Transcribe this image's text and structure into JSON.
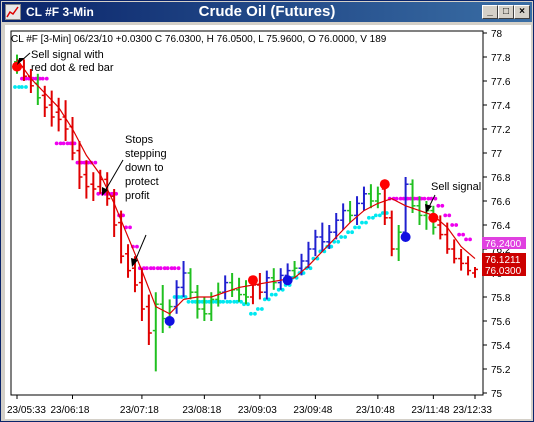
{
  "window": {
    "title_left": "CL #F 3-Min",
    "title_center": "Crude Oil (Futures)",
    "buttons": [
      "minimize-icon",
      "maximize-icon",
      "close-icon"
    ],
    "title_gradient": [
      "#0a246a",
      "#3a6ea5"
    ]
  },
  "info_line": "CL #F [3-Min] 06/23/10 +0.0300 C 76.0300, H 76.0500, L 75.9600, O 76.0000, V 189",
  "annotations": [
    {
      "lines": [
        "Sell signal with",
        "red dot & red bar"
      ]
    },
    {
      "lines": [
        "Stops",
        "stepping",
        "down to",
        "protect",
        "profit"
      ]
    },
    {
      "lines": [
        "Sell signal"
      ]
    }
  ],
  "price_boxes": [
    {
      "value": "76.2400",
      "color": "#e040e0"
    },
    {
      "value": "76.1211",
      "color": "#cc0000"
    },
    {
      "value": "76.0300",
      "color": "#cc0000"
    }
  ],
  "chart_data": {
    "type": "candlestick",
    "ylim": [
      75,
      78
    ],
    "y_ticks": [
      "78",
      "77.8",
      "77.6",
      "77.4",
      "77.2",
      "77",
      "76.8",
      "76.6",
      "76.4",
      "76.2",
      "76",
      "75.8",
      "75.6",
      "75.4",
      "75.2",
      "75"
    ],
    "x_ticks": [
      "23/05:33",
      "23/06:18",
      "23/07:18",
      "23/08:18",
      "23/09:03",
      "23/09:48",
      "23/10:48",
      "23/11:48",
      "23/12:33"
    ],
    "colors": {
      "down": "#e00000",
      "up": "#2020d0",
      "neutral": "#20c020",
      "ma": "#dd0000",
      "stop_short": "#ee00ee",
      "stop_long": "#00e8f0",
      "signal_red": "#ff0000",
      "signal_blue": "#1010e0"
    },
    "bars": [
      {
        "x": 1,
        "o": 77.76,
        "h": 77.82,
        "l": 77.66,
        "c": 77.7,
        "col": "neutral"
      },
      {
        "x": 2,
        "o": 77.72,
        "h": 77.78,
        "l": 77.6,
        "c": 77.64,
        "col": "down"
      },
      {
        "x": 3,
        "o": 77.64,
        "h": 77.7,
        "l": 77.5,
        "c": 77.56,
        "col": "down"
      },
      {
        "x": 4,
        "o": 77.58,
        "h": 77.66,
        "l": 77.4,
        "c": 77.46,
        "col": "neutral"
      },
      {
        "x": 5,
        "o": 77.48,
        "h": 77.56,
        "l": 77.3,
        "c": 77.38,
        "col": "down"
      },
      {
        "x": 6,
        "o": 77.4,
        "h": 77.52,
        "l": 77.22,
        "c": 77.3,
        "col": "down"
      },
      {
        "x": 7,
        "o": 77.34,
        "h": 77.46,
        "l": 77.18,
        "c": 77.28,
        "col": "down"
      },
      {
        "x": 8,
        "o": 77.3,
        "h": 77.44,
        "l": 77.1,
        "c": 77.2,
        "col": "down"
      },
      {
        "x": 9,
        "o": 77.22,
        "h": 77.3,
        "l": 76.94,
        "c": 77.0,
        "col": "down"
      },
      {
        "x": 10,
        "o": 77.02,
        "h": 77.1,
        "l": 76.7,
        "c": 76.8,
        "col": "down"
      },
      {
        "x": 11,
        "o": 76.82,
        "h": 76.94,
        "l": 76.62,
        "c": 76.72,
        "col": "down"
      },
      {
        "x": 12,
        "o": 76.74,
        "h": 76.84,
        "l": 76.6,
        "c": 76.7,
        "col": "down"
      },
      {
        "x": 13,
        "o": 76.72,
        "h": 76.86,
        "l": 76.66,
        "c": 76.78,
        "col": "down"
      },
      {
        "x": 14,
        "o": 76.78,
        "h": 76.84,
        "l": 76.56,
        "c": 76.62,
        "col": "down"
      },
      {
        "x": 15,
        "o": 76.64,
        "h": 76.7,
        "l": 76.3,
        "c": 76.4,
        "col": "down"
      },
      {
        "x": 16,
        "o": 76.42,
        "h": 76.52,
        "l": 76.08,
        "c": 76.14,
        "col": "down"
      },
      {
        "x": 17,
        "o": 76.16,
        "h": 76.24,
        "l": 75.96,
        "c": 76.02,
        "col": "down"
      },
      {
        "x": 18,
        "o": 76.04,
        "h": 76.14,
        "l": 75.84,
        "c": 75.9,
        "col": "down"
      },
      {
        "x": 19,
        "o": 75.92,
        "h": 76.04,
        "l": 75.6,
        "c": 75.7,
        "col": "down"
      },
      {
        "x": 20,
        "o": 75.72,
        "h": 75.82,
        "l": 75.4,
        "c": 75.5,
        "col": "down"
      },
      {
        "x": 21,
        "o": 75.52,
        "h": 75.84,
        "l": 75.18,
        "c": 75.74,
        "col": "neutral"
      },
      {
        "x": 22,
        "o": 75.74,
        "h": 75.9,
        "l": 75.5,
        "c": 75.62,
        "col": "neutral"
      },
      {
        "x": 23,
        "o": 75.62,
        "h": 75.78,
        "l": 75.54,
        "c": 75.72,
        "col": "neutral"
      },
      {
        "x": 24,
        "o": 75.72,
        "h": 75.94,
        "l": 75.66,
        "c": 75.88,
        "col": "up"
      },
      {
        "x": 25,
        "o": 75.88,
        "h": 76.1,
        "l": 75.8,
        "c": 76.0,
        "col": "up"
      },
      {
        "x": 26,
        "o": 76.0,
        "h": 76.04,
        "l": 75.78,
        "c": 75.84,
        "col": "neutral"
      },
      {
        "x": 27,
        "o": 75.84,
        "h": 75.9,
        "l": 75.62,
        "c": 75.7,
        "col": "neutral"
      },
      {
        "x": 28,
        "o": 75.7,
        "h": 75.8,
        "l": 75.6,
        "c": 75.66,
        "col": "neutral"
      },
      {
        "x": 29,
        "o": 75.66,
        "h": 75.84,
        "l": 75.6,
        "c": 75.78,
        "col": "neutral"
      },
      {
        "x": 30,
        "o": 75.78,
        "h": 75.92,
        "l": 75.72,
        "c": 75.84,
        "col": "neutral"
      },
      {
        "x": 31,
        "o": 75.84,
        "h": 75.98,
        "l": 75.78,
        "c": 75.92,
        "col": "up"
      },
      {
        "x": 32,
        "o": 75.92,
        "h": 76.0,
        "l": 75.8,
        "c": 75.86,
        "col": "neutral"
      },
      {
        "x": 33,
        "o": 75.86,
        "h": 75.96,
        "l": 75.76,
        "c": 75.82,
        "col": "neutral"
      },
      {
        "x": 34,
        "o": 75.82,
        "h": 75.94,
        "l": 75.74,
        "c": 75.8,
        "col": "neutral"
      },
      {
        "x": 35,
        "o": 75.8,
        "h": 75.96,
        "l": 75.74,
        "c": 75.9,
        "col": "down"
      },
      {
        "x": 36,
        "o": 75.9,
        "h": 76.0,
        "l": 75.78,
        "c": 75.84,
        "col": "down"
      },
      {
        "x": 37,
        "o": 75.84,
        "h": 76.02,
        "l": 75.78,
        "c": 75.96,
        "col": "up"
      },
      {
        "x": 38,
        "o": 75.96,
        "h": 76.04,
        "l": 75.86,
        "c": 75.92,
        "col": "neutral"
      },
      {
        "x": 39,
        "o": 75.92,
        "h": 76.04,
        "l": 75.86,
        "c": 75.98,
        "col": "up"
      },
      {
        "x": 40,
        "o": 75.98,
        "h": 76.08,
        "l": 75.9,
        "c": 76.02,
        "col": "up"
      },
      {
        "x": 41,
        "o": 76.02,
        "h": 76.1,
        "l": 75.96,
        "c": 76.04,
        "col": "neutral"
      },
      {
        "x": 42,
        "o": 76.04,
        "h": 76.16,
        "l": 75.98,
        "c": 76.1,
        "col": "up"
      },
      {
        "x": 43,
        "o": 76.1,
        "h": 76.26,
        "l": 76.04,
        "c": 76.2,
        "col": "up"
      },
      {
        "x": 44,
        "o": 76.2,
        "h": 76.36,
        "l": 76.14,
        "c": 76.3,
        "col": "up"
      },
      {
        "x": 45,
        "o": 76.3,
        "h": 76.42,
        "l": 76.18,
        "c": 76.26,
        "col": "up"
      },
      {
        "x": 46,
        "o": 76.26,
        "h": 76.4,
        "l": 76.2,
        "c": 76.34,
        "col": "up"
      },
      {
        "x": 47,
        "o": 76.34,
        "h": 76.5,
        "l": 76.28,
        "c": 76.44,
        "col": "up"
      },
      {
        "x": 48,
        "o": 76.44,
        "h": 76.58,
        "l": 76.36,
        "c": 76.52,
        "col": "up"
      },
      {
        "x": 49,
        "o": 76.52,
        "h": 76.6,
        "l": 76.42,
        "c": 76.48,
        "col": "neutral"
      },
      {
        "x": 50,
        "o": 76.48,
        "h": 76.64,
        "l": 76.4,
        "c": 76.58,
        "col": "up"
      },
      {
        "x": 51,
        "o": 76.58,
        "h": 76.72,
        "l": 76.52,
        "c": 76.66,
        "col": "up"
      },
      {
        "x": 52,
        "o": 76.66,
        "h": 76.74,
        "l": 76.54,
        "c": 76.6,
        "col": "neutral"
      },
      {
        "x": 53,
        "o": 76.6,
        "h": 76.72,
        "l": 76.54,
        "c": 76.66,
        "col": "neutral"
      },
      {
        "x": 54,
        "o": 76.7,
        "h": 76.78,
        "l": 76.4,
        "c": 76.46,
        "col": "down"
      },
      {
        "x": 55,
        "o": 76.46,
        "h": 76.52,
        "l": 76.14,
        "c": 76.2,
        "col": "down"
      },
      {
        "x": 56,
        "o": 76.2,
        "h": 76.4,
        "l": 76.1,
        "c": 76.34,
        "col": "neutral"
      },
      {
        "x": 57,
        "o": 76.34,
        "h": 76.8,
        "l": 76.3,
        "c": 76.74,
        "col": "up"
      },
      {
        "x": 58,
        "o": 76.74,
        "h": 76.78,
        "l": 76.5,
        "c": 76.56,
        "col": "neutral"
      },
      {
        "x": 59,
        "o": 76.56,
        "h": 76.64,
        "l": 76.4,
        "c": 76.48,
        "col": "neutral"
      },
      {
        "x": 60,
        "o": 76.48,
        "h": 76.6,
        "l": 76.36,
        "c": 76.52,
        "col": "neutral"
      },
      {
        "x": 61,
        "o": 76.52,
        "h": 76.56,
        "l": 76.32,
        "c": 76.38,
        "col": "neutral"
      },
      {
        "x": 62,
        "o": 76.4,
        "h": 76.48,
        "l": 76.28,
        "c": 76.32,
        "col": "down"
      },
      {
        "x": 63,
        "o": 76.32,
        "h": 76.42,
        "l": 76.16,
        "c": 76.2,
        "col": "down"
      },
      {
        "x": 64,
        "o": 76.2,
        "h": 76.28,
        "l": 76.08,
        "c": 76.12,
        "col": "down"
      },
      {
        "x": 65,
        "o": 76.12,
        "h": 76.2,
        "l": 76.02,
        "c": 76.08,
        "col": "down"
      },
      {
        "x": 66,
        "o": 76.08,
        "h": 76.14,
        "l": 75.98,
        "c": 76.02,
        "col": "down"
      },
      {
        "x": 67,
        "o": 76.0,
        "h": 76.05,
        "l": 75.96,
        "c": 76.03,
        "col": "down"
      }
    ],
    "ma": [
      [
        1,
        77.78
      ],
      [
        3,
        77.62
      ],
      [
        5,
        77.5
      ],
      [
        7,
        77.38
      ],
      [
        9,
        77.2
      ],
      [
        11,
        76.98
      ],
      [
        13,
        76.82
      ],
      [
        15,
        76.58
      ],
      [
        17,
        76.3
      ],
      [
        19,
        76.02
      ],
      [
        21,
        75.72
      ],
      [
        23,
        75.66
      ],
      [
        25,
        75.78
      ],
      [
        27,
        75.8
      ],
      [
        29,
        75.8
      ],
      [
        31,
        75.84
      ],
      [
        33,
        75.88
      ],
      [
        35,
        75.9
      ],
      [
        37,
        75.92
      ],
      [
        39,
        75.94
      ],
      [
        41,
        75.96
      ],
      [
        43,
        76.06
      ],
      [
        45,
        76.18
      ],
      [
        47,
        76.3
      ],
      [
        49,
        76.42
      ],
      [
        51,
        76.52
      ],
      [
        53,
        76.58
      ],
      [
        55,
        76.62
      ],
      [
        57,
        76.56
      ],
      [
        59,
        76.52
      ],
      [
        61,
        76.48
      ],
      [
        63,
        76.38
      ],
      [
        65,
        76.22
      ],
      [
        67,
        76.12
      ]
    ],
    "stops_short": [
      [
        2,
        77.62
      ],
      [
        3,
        77.62
      ],
      [
        4,
        77.62
      ],
      [
        5,
        77.62
      ],
      [
        7,
        77.08
      ],
      [
        8,
        77.08
      ],
      [
        9,
        77.08
      ],
      [
        10,
        76.92
      ],
      [
        11,
        76.92
      ],
      [
        12,
        76.92
      ],
      [
        13,
        76.66
      ],
      [
        14,
        76.66
      ],
      [
        15,
        76.66
      ],
      [
        16,
        76.48
      ],
      [
        17,
        76.38
      ],
      [
        18,
        76.22
      ],
      [
        19,
        76.04
      ],
      [
        20,
        76.04
      ],
      [
        21,
        76.04
      ],
      [
        22,
        76.04
      ],
      [
        23,
        76.04
      ],
      [
        24,
        76.04
      ],
      [
        55,
        76.62
      ],
      [
        56,
        76.62
      ],
      [
        57,
        76.62
      ],
      [
        58,
        76.62
      ],
      [
        59,
        76.62
      ],
      [
        60,
        76.62
      ],
      [
        61,
        76.62
      ],
      [
        62,
        76.56
      ],
      [
        63,
        76.48
      ],
      [
        64,
        76.4
      ],
      [
        65,
        76.32
      ],
      [
        66,
        76.28
      ]
    ],
    "stops_long": [
      [
        1,
        77.55
      ],
      [
        2,
        77.55
      ],
      [
        24,
        75.8
      ],
      [
        25,
        75.8
      ],
      [
        26,
        75.76
      ],
      [
        27,
        75.76
      ],
      [
        28,
        75.76
      ],
      [
        29,
        75.76
      ],
      [
        30,
        75.76
      ],
      [
        31,
        75.76
      ],
      [
        32,
        75.76
      ],
      [
        33,
        75.76
      ],
      [
        34,
        75.74
      ],
      [
        35,
        75.66
      ],
      [
        36,
        75.7
      ],
      [
        37,
        75.78
      ],
      [
        38,
        75.82
      ],
      [
        39,
        75.86
      ],
      [
        40,
        75.9
      ],
      [
        41,
        75.96
      ],
      [
        42,
        76.0
      ],
      [
        43,
        76.04
      ],
      [
        44,
        76.12
      ],
      [
        45,
        76.18
      ],
      [
        46,
        76.22
      ],
      [
        47,
        76.26
      ],
      [
        48,
        76.3
      ],
      [
        49,
        76.34
      ],
      [
        50,
        76.38
      ],
      [
        51,
        76.42
      ],
      [
        52,
        76.46
      ],
      [
        53,
        76.48
      ],
      [
        54,
        76.5
      ]
    ],
    "signals": [
      {
        "x": 1,
        "y": 77.72,
        "col": "signal_red"
      },
      {
        "x": 23,
        "y": 75.6,
        "col": "signal_blue"
      },
      {
        "x": 35,
        "y": 75.94,
        "col": "signal_red"
      },
      {
        "x": 40,
        "y": 75.94,
        "col": "signal_blue"
      },
      {
        "x": 54,
        "y": 76.74,
        "col": "signal_red"
      },
      {
        "x": 57,
        "y": 76.3,
        "col": "signal_blue"
      },
      {
        "x": 61,
        "y": 76.46,
        "col": "signal_red"
      }
    ]
  }
}
